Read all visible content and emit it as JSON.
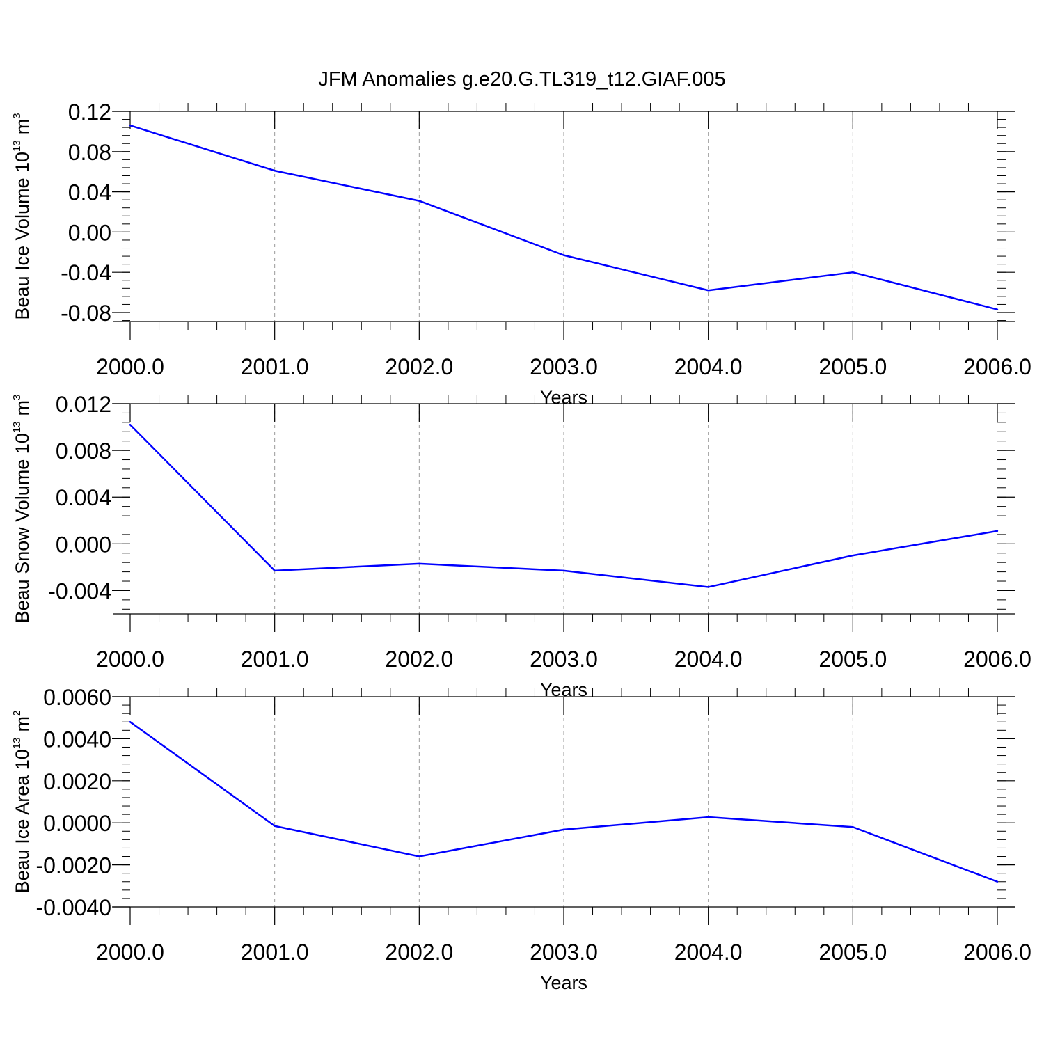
{
  "title": "JFM Anomalies g.e20.G.TL319_t12.GIAF.005",
  "line_color": "#0000ff",
  "grid_color": "#999999",
  "chart_data": [
    {
      "type": "line",
      "title": "JFM Anomalies g.e20.G.TL319_t12.GIAF.005",
      "xlabel": "Years",
      "ylabel": {
        "text": "Beau Ice Volume 10",
        "sup": "13",
        "unit": "m",
        "unit_sup": "3"
      },
      "xlim": [
        2000,
        2006
      ],
      "ylim": [
        -0.089,
        0.12
      ],
      "x_ticks": [
        2000,
        2001,
        2002,
        2003,
        2004,
        2005,
        2006
      ],
      "x_tick_labels": [
        "2000.0",
        "2001.0",
        "2002.0",
        "2003.0",
        "2004.0",
        "2005.0",
        "2006.0"
      ],
      "y_ticks": [
        0.12,
        0.08,
        0.04,
        0.0,
        -0.04,
        -0.08
      ],
      "y_tick_labels": [
        "0.12",
        "0.08",
        "0.04",
        "0.00",
        "-0.04",
        "-0.08"
      ],
      "grid": "vertical dashed",
      "x": [
        2000,
        2001,
        2002,
        2003,
        2004,
        2005,
        2006
      ],
      "values": [
        0.106,
        0.061,
        0.031,
        -0.023,
        -0.058,
        -0.04,
        -0.077
      ]
    },
    {
      "type": "line",
      "xlabel": "Years",
      "ylabel": {
        "text": "Beau Snow Volume 10",
        "sup": "13",
        "unit": "m",
        "unit_sup": "3"
      },
      "xlim": [
        2000,
        2006
      ],
      "ylim": [
        -0.006,
        0.012
      ],
      "x_ticks": [
        2000,
        2001,
        2002,
        2003,
        2004,
        2005,
        2006
      ],
      "x_tick_labels": [
        "2000.0",
        "2001.0",
        "2002.0",
        "2003.0",
        "2004.0",
        "2005.0",
        "2006.0"
      ],
      "y_ticks": [
        0.012,
        0.008,
        0.004,
        0.0,
        -0.004
      ],
      "y_tick_labels": [
        "0.012",
        "0.008",
        "0.004",
        "0.000",
        "-0.004"
      ],
      "grid": "vertical dashed",
      "x": [
        2000,
        2001,
        2002,
        2003,
        2004,
        2005,
        2006
      ],
      "values": [
        0.0102,
        -0.0023,
        -0.0017,
        -0.0023,
        -0.0037,
        -0.001,
        0.0011
      ]
    },
    {
      "type": "line",
      "xlabel": "Years",
      "ylabel": {
        "text": "Beau Ice Area 10",
        "sup": "13",
        "unit": "m",
        "unit_sup": "2"
      },
      "xlim": [
        2000,
        2006
      ],
      "ylim": [
        -0.004,
        0.006
      ],
      "x_ticks": [
        2000,
        2001,
        2002,
        2003,
        2004,
        2005,
        2006
      ],
      "x_tick_labels": [
        "2000.0",
        "2001.0",
        "2002.0",
        "2003.0",
        "2004.0",
        "2005.0",
        "2006.0"
      ],
      "y_ticks": [
        0.006,
        0.004,
        0.002,
        0.0,
        -0.002,
        -0.004
      ],
      "y_tick_labels": [
        "0.0060",
        "0.0040",
        "0.0020",
        "0.0000",
        "-0.0020",
        "-0.0040"
      ],
      "grid": "vertical dashed",
      "x": [
        2000,
        2001,
        2002,
        2003,
        2004,
        2005,
        2006
      ],
      "values": [
        0.0048,
        -0.00015,
        -0.0016,
        -0.00032,
        0.00027,
        -0.0002,
        -0.0028
      ]
    }
  ]
}
